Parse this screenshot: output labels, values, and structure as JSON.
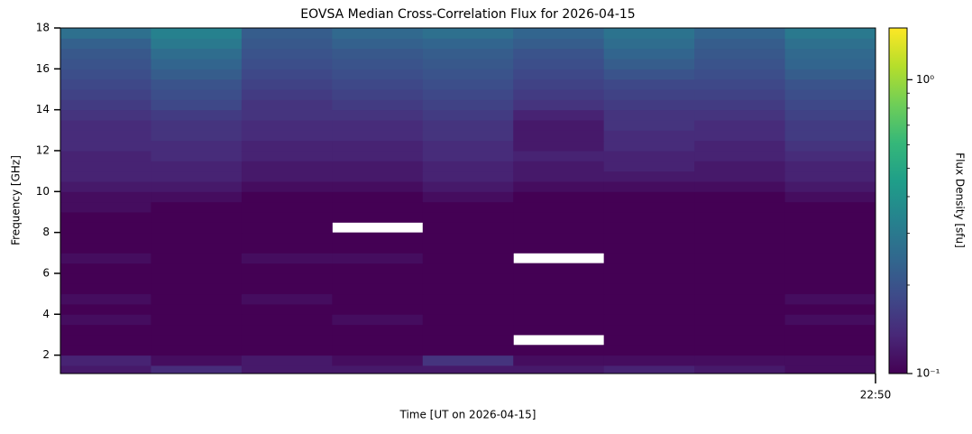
{
  "chart_data": {
    "type": "heatmap",
    "title": "EOVSA Median Cross-Correlation Flux for 2026-04-15",
    "x_label": "Time [UT on 2026-04-15]",
    "y_label": "Frequency [GHz]",
    "colorbar_label": "Flux Density [sfu]",
    "colormap": "viridis",
    "color_scale": "log",
    "categories": [
      null,
      null,
      null,
      null,
      null,
      null,
      null,
      null,
      null
    ],
    "x_end_label": "22:50",
    "ybins": [
      1.1,
      1.5,
      2.0,
      2.5,
      3.0,
      3.5,
      4.0,
      4.5,
      5.0,
      5.5,
      6.0,
      6.5,
      7.0,
      7.5,
      8.0,
      8.5,
      9.0,
      9.5,
      10.0,
      10.5,
      11.0,
      11.5,
      12.0,
      12.5,
      13.0,
      13.5,
      14.0,
      14.5,
      15.0,
      15.5,
      16.0,
      16.5,
      17.0,
      17.5,
      18.0
    ],
    "ylim": [
      1.1,
      18
    ],
    "yticks": [
      2,
      4,
      6,
      8,
      10,
      12,
      14,
      16,
      18
    ],
    "clim": [
      0.1,
      1.5
    ],
    "cticks": [
      {
        "value": 0.1,
        "label": "10⁻¹"
      },
      {
        "value": 1,
        "label": "10⁰"
      }
    ],
    "cminorticks": [
      0.2,
      0.3,
      0.4,
      0.5,
      0.6,
      0.7,
      0.8,
      0.9
    ],
    "z": [
      [
        0.12,
        0.14,
        0.12,
        0.12,
        0.12,
        0.12,
        0.13,
        0.12,
        0.11
      ],
      [
        0.13,
        0.11,
        0.12,
        0.11,
        0.15,
        0.11,
        0.11,
        0.11,
        0.11
      ],
      [
        0.1,
        0.1,
        0.1,
        0.1,
        0.1,
        0.1,
        0.1,
        0.1,
        0.1
      ],
      [
        0.1,
        0.1,
        0.1,
        0.1,
        0.1,
        null,
        0.1,
        0.1,
        0.1
      ],
      [
        0.1,
        0.1,
        0.1,
        0.1,
        0.1,
        0.1,
        0.1,
        0.1,
        0.1
      ],
      [
        0.11,
        0.1,
        0.1,
        0.11,
        0.1,
        0.1,
        0.1,
        0.1,
        0.11
      ],
      [
        0.1,
        0.1,
        0.1,
        0.1,
        0.1,
        0.1,
        0.1,
        0.1,
        0.1
      ],
      [
        0.11,
        0.1,
        0.11,
        0.1,
        0.1,
        0.1,
        0.1,
        0.1,
        0.11
      ],
      [
        0.1,
        0.1,
        0.1,
        0.1,
        0.1,
        0.1,
        0.1,
        0.1,
        0.1
      ],
      [
        0.1,
        0.1,
        0.1,
        0.1,
        0.1,
        0.1,
        0.1,
        0.1,
        0.1
      ],
      [
        0.1,
        0.1,
        0.1,
        0.1,
        0.1,
        0.1,
        0.1,
        0.1,
        0.1
      ],
      [
        0.11,
        0.1,
        0.11,
        0.11,
        0.1,
        null,
        0.1,
        0.1,
        0.1
      ],
      [
        0.1,
        0.1,
        0.1,
        0.1,
        0.1,
        0.1,
        0.1,
        0.1,
        0.1
      ],
      [
        0.1,
        0.1,
        0.1,
        0.1,
        0.1,
        0.1,
        0.1,
        0.1,
        0.1
      ],
      [
        0.1,
        0.1,
        0.1,
        null,
        0.1,
        0.1,
        0.1,
        0.1,
        0.1
      ],
      [
        0.1,
        0.1,
        0.1,
        0.1,
        0.1,
        0.1,
        0.1,
        0.1,
        0.1
      ],
      [
        0.11,
        0.1,
        0.1,
        0.1,
        0.1,
        0.1,
        0.1,
        0.1,
        0.1
      ],
      [
        0.11,
        0.11,
        0.1,
        0.1,
        0.11,
        0.1,
        0.1,
        0.1,
        0.11
      ],
      [
        0.12,
        0.12,
        0.11,
        0.11,
        0.12,
        0.11,
        0.11,
        0.11,
        0.12
      ],
      [
        0.13,
        0.13,
        0.12,
        0.12,
        0.13,
        0.12,
        0.12,
        0.12,
        0.13
      ],
      [
        0.13,
        0.13,
        0.12,
        0.12,
        0.13,
        0.12,
        0.13,
        0.12,
        0.13
      ],
      [
        0.13,
        0.14,
        0.13,
        0.13,
        0.14,
        0.13,
        0.13,
        0.13,
        0.14
      ],
      [
        0.14,
        0.14,
        0.13,
        0.13,
        0.14,
        0.12,
        0.14,
        0.13,
        0.15
      ],
      [
        0.14,
        0.15,
        0.14,
        0.14,
        0.15,
        0.12,
        0.14,
        0.14,
        0.16
      ],
      [
        0.14,
        0.15,
        0.14,
        0.14,
        0.15,
        0.12,
        0.15,
        0.14,
        0.16
      ],
      [
        0.15,
        0.16,
        0.15,
        0.15,
        0.16,
        0.13,
        0.15,
        0.15,
        0.17
      ],
      [
        0.16,
        0.18,
        0.15,
        0.16,
        0.17,
        0.15,
        0.16,
        0.16,
        0.18
      ],
      [
        0.17,
        0.19,
        0.16,
        0.17,
        0.18,
        0.16,
        0.17,
        0.17,
        0.19
      ],
      [
        0.18,
        0.2,
        0.17,
        0.18,
        0.19,
        0.17,
        0.18,
        0.18,
        0.2
      ],
      [
        0.19,
        0.22,
        0.18,
        0.19,
        0.2,
        0.18,
        0.2,
        0.19,
        0.22
      ],
      [
        0.2,
        0.24,
        0.19,
        0.2,
        0.21,
        0.19,
        0.22,
        0.2,
        0.24
      ],
      [
        0.21,
        0.26,
        0.2,
        0.21,
        0.22,
        0.2,
        0.24,
        0.21,
        0.25
      ],
      [
        0.23,
        0.3,
        0.21,
        0.23,
        0.24,
        0.22,
        0.26,
        0.22,
        0.27
      ],
      [
        0.27,
        0.33,
        0.22,
        0.25,
        0.27,
        0.24,
        0.28,
        0.24,
        0.3
      ]
    ]
  }
}
